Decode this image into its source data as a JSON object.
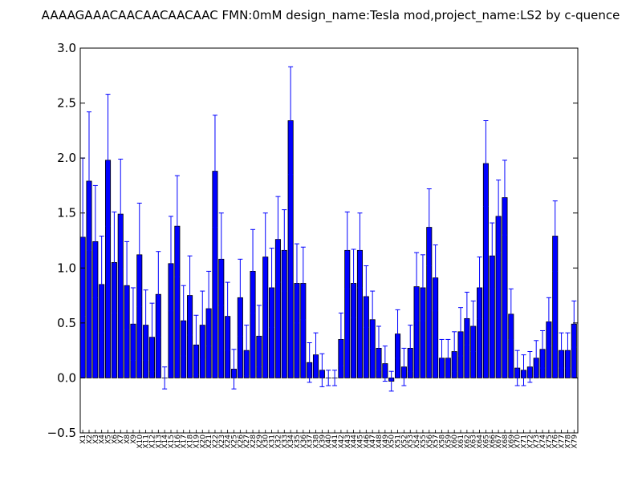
{
  "chart_data": {
    "type": "bar",
    "title": "AAAAGAAACAACAACAACAAC  FMN:0mM  design_name:Tesla mod,project_name:LS2 by c-quence",
    "xlabel": "",
    "ylabel": "",
    "ylim": [
      -0.5,
      3.0
    ],
    "yticks": [
      "−0.5",
      "0.0",
      "0.5",
      "1.0",
      "1.5",
      "2.0",
      "2.5",
      "3.0"
    ],
    "ytick_values": [
      -0.5,
      0.0,
      0.5,
      1.0,
      1.5,
      2.0,
      2.5,
      3.0
    ],
    "grid": false,
    "bar_color": "#0000ff",
    "edge_color": "#000000",
    "error_color": "#0000ff",
    "categories": [
      "X1",
      "X2",
      "X3",
      "X4",
      "X5",
      "X6",
      "X7",
      "X8",
      "X9",
      "X10",
      "X11",
      "X12",
      "X13",
      "X14",
      "X15",
      "X16",
      "X17",
      "X18",
      "X19",
      "X20",
      "X21",
      "X22",
      "X23",
      "X24",
      "X25",
      "X26",
      "X27",
      "X28",
      "X29",
      "X30",
      "X31",
      "X32",
      "X33",
      "X34",
      "X35",
      "X36",
      "X37",
      "X38",
      "X39",
      "X40",
      "X41",
      "X42",
      "X43",
      "X44",
      "X45",
      "X46",
      "X47",
      "X48",
      "X49",
      "X50",
      "X51",
      "X52",
      "X53",
      "X54",
      "X55",
      "X56",
      "X57",
      "X58",
      "X59",
      "X60",
      "X61",
      "X62",
      "X63",
      "X64",
      "X65",
      "X66",
      "X67",
      "X68",
      "X69",
      "X70",
      "X71",
      "X72",
      "X73",
      "X74",
      "X75",
      "X76",
      "X77",
      "X78",
      "X79"
    ],
    "values": [
      1.28,
      1.79,
      1.24,
      0.85,
      1.98,
      1.05,
      1.49,
      0.84,
      0.49,
      1.12,
      0.48,
      0.37,
      0.76,
      0.0,
      1.04,
      1.38,
      0.52,
      0.75,
      0.3,
      0.48,
      0.63,
      1.88,
      1.08,
      0.56,
      0.08,
      0.73,
      0.25,
      0.97,
      0.38,
      1.1,
      0.82,
      1.26,
      1.16,
      2.34,
      0.86,
      0.86,
      0.14,
      0.21,
      0.07,
      0.0,
      0.0,
      0.35,
      1.16,
      0.86,
      1.16,
      0.74,
      0.53,
      0.27,
      0.13,
      -0.03,
      0.4,
      0.1,
      0.27,
      0.83,
      0.82,
      1.37,
      0.91,
      0.18,
      0.18,
      0.24,
      0.42,
      0.54,
      0.47,
      0.82,
      1.95,
      1.11,
      1.47,
      1.64,
      0.58,
      0.09,
      0.07,
      0.1,
      0.18,
      0.26,
      0.51,
      1.29,
      0.25,
      0.25,
      0.49
    ],
    "errors": [
      0.72,
      0.63,
      0.51,
      0.44,
      0.6,
      0.46,
      0.5,
      0.4,
      0.33,
      0.47,
      0.32,
      0.31,
      0.39,
      0.1,
      0.43,
      0.46,
      0.32,
      0.36,
      0.27,
      0.31,
      0.34,
      0.51,
      0.42,
      0.31,
      0.18,
      0.35,
      0.23,
      0.38,
      0.28,
      0.4,
      0.36,
      0.39,
      0.37,
      0.49,
      0.36,
      0.33,
      0.18,
      0.2,
      0.15,
      0.07,
      0.07,
      0.24,
      0.35,
      0.31,
      0.34,
      0.28,
      0.26,
      0.2,
      0.16,
      0.09,
      0.22,
      0.17,
      0.21,
      0.31,
      0.3,
      0.35,
      0.3,
      0.17,
      0.17,
      0.18,
      0.22,
      0.24,
      0.23,
      0.28,
      0.39,
      0.3,
      0.33,
      0.34,
      0.23,
      0.16,
      0.14,
      0.14,
      0.16,
      0.17,
      0.22,
      0.32,
      0.16,
      0.16,
      0.21
    ]
  }
}
